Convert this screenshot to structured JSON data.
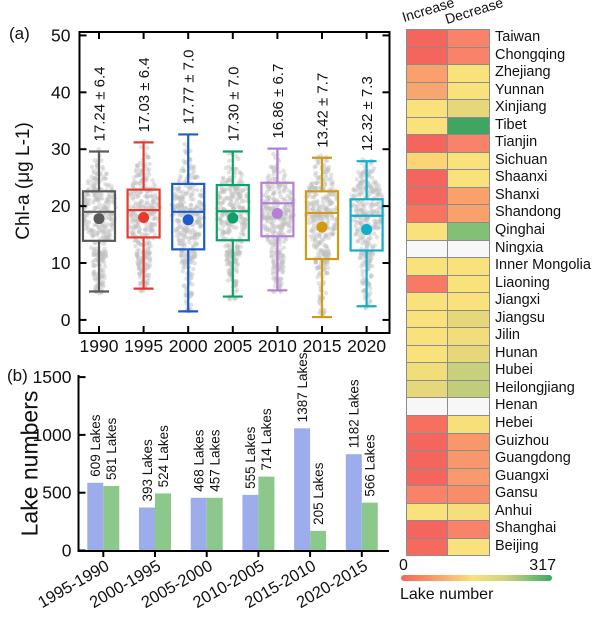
{
  "panel_labels": {
    "a": "(a)",
    "b": "(b)"
  },
  "chart_data": [
    {
      "id": "panel_a",
      "type": "box",
      "ylabel": "Chl-a (μg L-1)",
      "ylim": [
        -2.3,
        50.6
      ],
      "yticks": [
        0,
        10,
        20,
        30,
        40,
        50
      ],
      "categories": [
        "1990",
        "1995",
        "2000",
        "2005",
        "2010",
        "2015",
        "2020"
      ],
      "annotation_color": "#2b44c4",
      "scatter_color": "#bfbfbf",
      "boxes": [
        {
          "year": "1990",
          "label": "17.24 ± 6.4",
          "color": "#5a5a5a",
          "whisker_low": 5.0,
          "q1": 13.9,
          "median": 19.0,
          "q3": 22.6,
          "whisker_high": 29.6,
          "mean": 17.8
        },
        {
          "year": "1995",
          "label": "17.03 ± 6.4",
          "color": "#e63a2e",
          "whisker_low": 5.5,
          "q1": 14.5,
          "median": 19.3,
          "q3": 22.9,
          "whisker_high": 31.2,
          "mean": 18.0
        },
        {
          "year": "2000",
          "label": "17.77 ± 7.0",
          "color": "#1d5cc8",
          "whisker_low": 1.5,
          "q1": 12.4,
          "median": 19.0,
          "q3": 23.9,
          "whisker_high": 32.6,
          "mean": 17.6
        },
        {
          "year": "2005",
          "label": "17.30 ± 7.0",
          "color": "#0fa068",
          "whisker_low": 4.1,
          "q1": 14.0,
          "median": 19.1,
          "q3": 23.7,
          "whisker_high": 29.6,
          "mean": 17.9
        },
        {
          "year": "2010",
          "label": "16.86 ± 6.7",
          "color": "#b57fd8",
          "whisker_low": 5.2,
          "q1": 14.7,
          "median": 20.5,
          "q3": 24.1,
          "whisker_high": 30.1,
          "mean": 18.7
        },
        {
          "year": "2015",
          "label": "13.42 ± 7.7",
          "color": "#d19a10",
          "whisker_low": 0.5,
          "q1": 10.7,
          "median": 18.8,
          "q3": 22.6,
          "whisker_high": 28.5,
          "mean": 16.3
        },
        {
          "year": "2020",
          "label": "12.32 ± 7.3",
          "color": "#10aec8",
          "whisker_low": 2.4,
          "q1": 12.2,
          "median": 18.3,
          "q3": 21.2,
          "whisker_high": 27.9,
          "mean": 15.9
        }
      ]
    },
    {
      "id": "panel_b",
      "type": "bar",
      "ylabel": "Lake numbers",
      "ylim": [
        0,
        1520
      ],
      "yticks": [
        0,
        500,
        1000,
        1500
      ],
      "categories": [
        "1995-1990",
        "2000-1995",
        "2005-2000",
        "2010-2005",
        "2015-2010",
        "2020-2015"
      ],
      "series": [
        {
          "name": "Increase",
          "color": "#9dacea",
          "label_color": "#4156c6",
          "values": [
            609,
            393,
            468,
            555,
            1387,
            1182
          ],
          "labels": [
            "609 Lakes",
            "393 Lakes",
            "468 Lakes",
            "555 Lakes",
            "1387 Lakes",
            "1182 Lakes"
          ],
          "bar_heights_displayed": [
            586,
            372,
            456,
            481,
            1057,
            833
          ]
        },
        {
          "name": "Decrease",
          "color": "#8cc88c",
          "label_color": "#2f7a3a",
          "values": [
            581,
            524,
            457,
            714,
            205,
            566
          ],
          "labels": [
            "581 Lakes",
            "524 Lakes",
            "457 Lakes",
            "714 Lakes",
            "205 Lakes",
            "566 Lakes"
          ],
          "bar_heights_displayed": [
            558,
            494,
            456,
            639,
            170,
            414
          ]
        }
      ]
    },
    {
      "id": "heatmap",
      "type": "heatmap",
      "columns": [
        "Increase",
        "Decrease"
      ],
      "rows": [
        {
          "province": "Taiwan",
          "increase_color": "#f4655d",
          "decrease_color": "#f8836a"
        },
        {
          "province": "Chongqing",
          "increase_color": "#f4655d",
          "decrease_color": "#f8836a"
        },
        {
          "province": "Zhejiang",
          "increase_color": "#f9a06b",
          "decrease_color": "#f9e17c"
        },
        {
          "province": "Yunnan",
          "increase_color": "#f9a570",
          "decrease_color": "#f9e17c"
        },
        {
          "province": "Xinjiang",
          "increase_color": "#f9e17c",
          "decrease_color": "#e6d87a"
        },
        {
          "province": "Tibet",
          "increase_color": "#f9e17c",
          "decrease_color": "#3ea563"
        },
        {
          "province": "Tianjin",
          "increase_color": "#f4655d",
          "decrease_color": "#f8836a"
        },
        {
          "province": "Sichuan",
          "increase_color": "#fbd573",
          "decrease_color": "#f9e17c"
        },
        {
          "province": "Shaanxi",
          "increase_color": "#f4655d",
          "decrease_color": "#f9e17c"
        },
        {
          "province": "Shanxi",
          "increase_color": "#f4655d",
          "decrease_color": "#f9a06b"
        },
        {
          "province": "Shandong",
          "increase_color": "#f7745f",
          "decrease_color": "#f9a06b"
        },
        {
          "province": "Qinghai",
          "increase_color": "#f9e17c",
          "decrease_color": "#82c077"
        },
        {
          "province": "Ningxia",
          "increase_color": "#f7f7f7",
          "decrease_color": "#f7f7f7"
        },
        {
          "province": "Inner Mongolia",
          "increase_color": "#f9e17c",
          "decrease_color": "#f9e17c"
        },
        {
          "province": "Liaoning",
          "increase_color": "#f87a64",
          "decrease_color": "#f9e17c"
        },
        {
          "province": "Jiangxi",
          "increase_color": "#f9e17c",
          "decrease_color": "#f9e17c"
        },
        {
          "province": "Jiangsu",
          "increase_color": "#f9e17c",
          "decrease_color": "#e6d87a"
        },
        {
          "province": "Jilin",
          "increase_color": "#f9e17c",
          "decrease_color": "#f2dd7b"
        },
        {
          "province": "Hunan",
          "increase_color": "#f9e17c",
          "decrease_color": "#e6d87a"
        },
        {
          "province": "Hubei",
          "increase_color": "#f2dd7b",
          "decrease_color": "#c9d07d"
        },
        {
          "province": "Heilongjiang",
          "increase_color": "#e6d87a",
          "decrease_color": "#c2cd7c"
        },
        {
          "province": "Henan",
          "increase_color": "#f7f7f7",
          "decrease_color": "#f7f7f7"
        },
        {
          "province": "Hebei",
          "increase_color": "#f7705f",
          "decrease_color": "#f7df79"
        },
        {
          "province": "Guizhou",
          "increase_color": "#f4655d",
          "decrease_color": "#f9976c"
        },
        {
          "province": "Guangdong",
          "increase_color": "#f4655d",
          "decrease_color": "#f9976c"
        },
        {
          "province": "Guangxi",
          "increase_color": "#f4655d",
          "decrease_color": "#f99a6e"
        },
        {
          "province": "Gansu",
          "increase_color": "#f8836a",
          "decrease_color": "#f88d6c"
        },
        {
          "province": "Anhui",
          "increase_color": "#f9e17c",
          "decrease_color": "#f6df7a"
        },
        {
          "province": "Shanghai",
          "increase_color": "#f4655d",
          "decrease_color": "#f8836a"
        },
        {
          "province": "Beijing",
          "increase_color": "#f66a5e",
          "decrease_color": "#f9e17c"
        }
      ],
      "colorbar": {
        "min": "0",
        "max": "317",
        "title": "Lake number",
        "gradient": [
          "#f4655d",
          "#f9a06b",
          "#f9e17c",
          "#cdd27d",
          "#7fbe73",
          "#3ea563"
        ]
      }
    }
  ]
}
